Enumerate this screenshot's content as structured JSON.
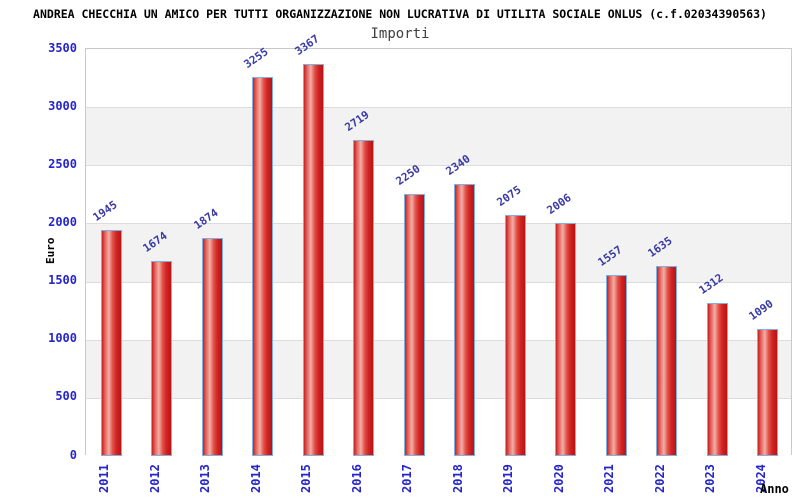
{
  "header": {
    "title": "ANDREA CHECCHIA UN AMICO PER TUTTI ORGANIZZAZIONE NON LUCRATIVA DI UTILITA SOCIALE ONLUS (c.f.02034390563)",
    "subtitle": "Importi"
  },
  "chart_data": {
    "type": "bar",
    "title": "Importi",
    "categories": [
      "2011",
      "2012",
      "2013",
      "2014",
      "2015",
      "2016",
      "2017",
      "2018",
      "2019",
      "2020",
      "2021",
      "2022",
      "2023",
      "2024"
    ],
    "values": [
      1945,
      1674,
      1874,
      3255,
      3367,
      2719,
      2250,
      2340,
      2075,
      2006,
      1557,
      1635,
      1312,
      1090
    ],
    "xlabel": "Anno",
    "ylabel": "Euro",
    "ylim": [
      0,
      3500
    ],
    "ytick_step": 500,
    "grid": "horizontal-bands-alternating",
    "legend": "none"
  },
  "colors": {
    "tick_label_blue": "#2525cc",
    "value_label_navy": "#3a3aa6",
    "bar_border_blue": "#7fb0e2",
    "bar_red_edge": "#c62020",
    "bar_red_highlight": "#f2aea6",
    "band_gray": "#f2f2f2",
    "band_white": "#ffffff",
    "gridline_gray": "#dcdcdc",
    "plot_border_gray": "#c9c9c9",
    "title_black": "#000000",
    "subtitle_gray": "#404040"
  }
}
